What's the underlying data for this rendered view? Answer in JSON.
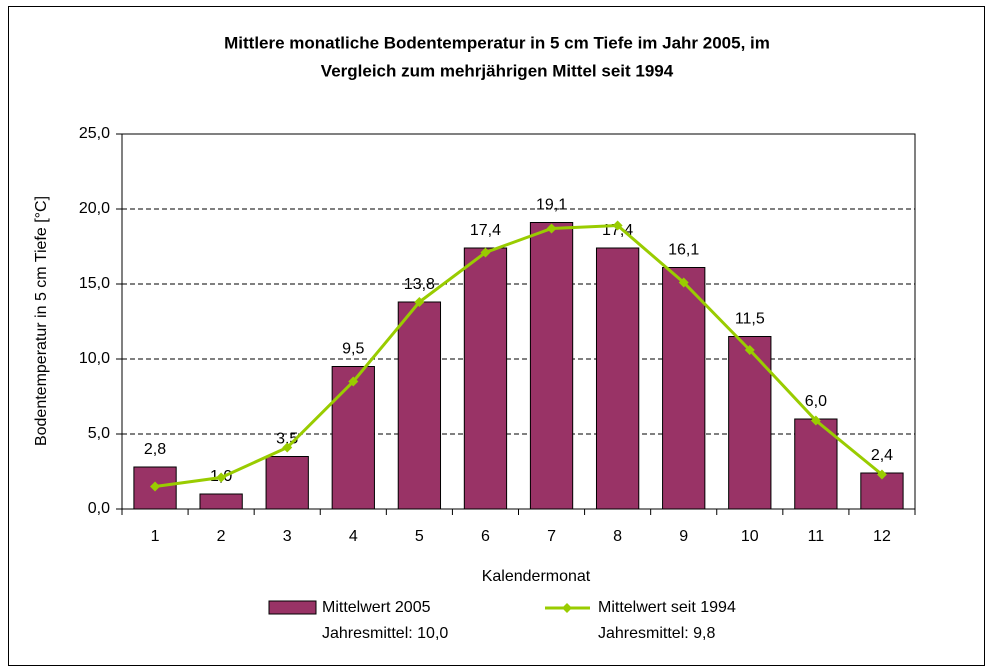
{
  "chart_data": {
    "type": "bar",
    "title_lines": [
      "Mittlere monatliche Bodentemperatur in 5 cm Tiefe im Jahr 2005, im",
      "Vergleich zum mehrjährigen Mittel seit 1994"
    ],
    "x_label": "Kalendermonat",
    "y_label": "Bodentemperatur in 5 cm Tiefe [°C]",
    "categories": [
      "1",
      "2",
      "3",
      "4",
      "5",
      "6",
      "7",
      "8",
      "9",
      "10",
      "11",
      "12"
    ],
    "ylim": [
      0,
      25
    ],
    "yticks": [
      {
        "value": 0,
        "label": "0,0"
      },
      {
        "value": 5,
        "label": "5,0"
      },
      {
        "value": 10,
        "label": "10,0"
      },
      {
        "value": 15,
        "label": "15,0"
      },
      {
        "value": 20,
        "label": "20,0"
      },
      {
        "value": 25,
        "label": "25,0"
      }
    ],
    "grid": true,
    "series": [
      {
        "name": "Mittelwert 2005",
        "note": "Jahresmittel: 10,0",
        "type": "bar",
        "color": "#993366",
        "values": [
          2.8,
          1.0,
          3.5,
          9.5,
          13.8,
          17.4,
          19.1,
          17.4,
          16.1,
          11.5,
          6.0,
          2.4
        ],
        "value_labels": [
          "2,8",
          "1,0",
          "3,5",
          "9,5",
          "13,8",
          "17,4",
          "19,1",
          "17,4",
          "16,1",
          "11,5",
          "6,0",
          "2,4"
        ]
      },
      {
        "name": "Mittelwert seit 1994",
        "note": "Jahresmittel: 9,8",
        "type": "line",
        "color": "#99cc00",
        "values": [
          1.5,
          2.1,
          4.1,
          8.5,
          13.8,
          17.1,
          18.7,
          18.9,
          15.1,
          10.6,
          5.9,
          2.3
        ]
      }
    ]
  }
}
